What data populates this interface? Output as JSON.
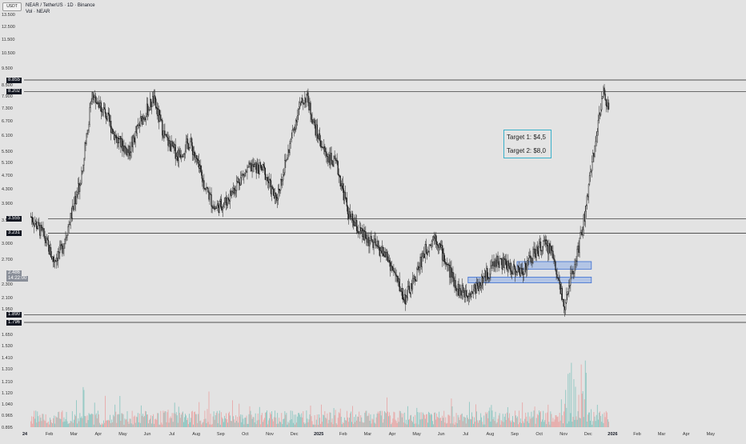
{
  "header": {
    "symbol_badge": "USDT",
    "title": "NEAR / TetherUS · 1D · Binance",
    "volume_label": "Vol · NEAR"
  },
  "annotation": {
    "target1": "Target 1: $4,5",
    "target2": "Target 2: $8,0"
  },
  "chart_data": {
    "type": "candlestick",
    "price_axis": {
      "scale": "log",
      "ticks": [
        "13.500",
        "12.500",
        "11.500",
        "10.500",
        "9.500",
        "8.500",
        "7.900",
        "7.300",
        "6.700",
        "6.100",
        "5.500",
        "5.100",
        "4.700",
        "4.300",
        "3.900",
        "3.500",
        "3.000",
        "2.700",
        "2.300",
        "2.100",
        "1.950",
        "1.650",
        "1.530",
        "1.410",
        "1.310",
        "1.210",
        "1.120",
        "1.040",
        "0.965",
        "0.895"
      ],
      "badges": {
        "level_top": "8.855",
        "level_high": "8.202",
        "level_mid_upper": "3.555",
        "level_mid": "3.231",
        "current": "2.486",
        "countdown": "14:22:00",
        "level_low_upper": "1.890",
        "level_low": "1.796"
      }
    },
    "time_axis": {
      "labels": [
        "24",
        "Feb",
        "Mar",
        "Apr",
        "May",
        "Jun",
        "Jul",
        "Aug",
        "Sep",
        "Oct",
        "Nov",
        "Dec",
        "2025",
        "Feb",
        "Mar",
        "Apr",
        "May",
        "Jun",
        "Jul",
        "Aug",
        "Sep",
        "Oct",
        "Nov",
        "Dec",
        "2026",
        "Feb",
        "Mar",
        "Apr",
        "May"
      ],
      "emphasized": [
        "24",
        "2025",
        "2026"
      ]
    },
    "horizontal_levels": [
      8.855,
      8.202,
      3.555,
      3.231,
      1.89,
      1.796
    ],
    "zones": [
      {
        "from_label": "Sep",
        "to_label": "Dec",
        "low": 2.55,
        "high": 2.68
      },
      {
        "from_label": "Jul",
        "to_label": "Dec",
        "low": 2.33,
        "high": 2.42
      }
    ],
    "price_path": [
      [
        "Jan 2024",
        3.6
      ],
      [
        "Jan 2024",
        3.2
      ],
      [
        "Feb 2024",
        2.7
      ],
      [
        "Feb 2024",
        2.9
      ],
      [
        "Feb 2024",
        3.5
      ],
      [
        "Mar 2024",
        4.5
      ],
      [
        "Mar 2024",
        8.0
      ],
      [
        "Apr 2024",
        7.2
      ],
      [
        "Apr 2024",
        6.0
      ],
      [
        "May 2024",
        5.5
      ],
      [
        "May 2024",
        6.8
      ],
      [
        "Jun 2024",
        7.8
      ],
      [
        "Jun 2024",
        6.0
      ],
      [
        "Jul 2024",
        5.4
      ],
      [
        "Jul 2024",
        5.9
      ],
      [
        "Aug 2024",
        4.6
      ],
      [
        "Aug 2024",
        3.8
      ],
      [
        "Sep 2024",
        4.0
      ],
      [
        "Sep 2024",
        4.6
      ],
      [
        "Oct 2024",
        5.0
      ],
      [
        "Oct 2024",
        4.9
      ],
      [
        "Nov 2024",
        4.0
      ],
      [
        "Nov 2024",
        5.5
      ],
      [
        "Dec 2024",
        7.3
      ],
      [
        "Dec 2024",
        8.0
      ],
      [
        "Dec 2024",
        6.5
      ],
      [
        "Jan 2025",
        5.5
      ],
      [
        "Jan 2025",
        5.0
      ],
      [
        "Feb 2025",
        3.6
      ],
      [
        "Feb 2025",
        3.2
      ],
      [
        "Mar 2025",
        3.0
      ],
      [
        "Mar 2025",
        2.8
      ],
      [
        "Apr 2025",
        2.4
      ],
      [
        "Apr 2025",
        2.1
      ],
      [
        "Apr 2025",
        2.3
      ],
      [
        "May 2025",
        2.8
      ],
      [
        "May 2025",
        3.2
      ],
      [
        "Jun 2025",
        2.6
      ],
      [
        "Jun 2025",
        2.2
      ],
      [
        "Jul 2025",
        2.2
      ],
      [
        "Jul 2025",
        2.4
      ],
      [
        "Aug 2025",
        2.7
      ],
      [
        "Aug 2025",
        2.6
      ],
      [
        "Sep 2025",
        2.5
      ],
      [
        "Sep 2025",
        2.8
      ],
      [
        "Oct 2025",
        3.0
      ],
      [
        "Oct 2025",
        2.9
      ],
      [
        "Oct 2025",
        2.3
      ],
      [
        "Nov 2025",
        2.0
      ],
      [
        "Nov 2025",
        2.4
      ],
      [
        "Nov 2025",
        2.6
      ],
      [
        "Nov 2025",
        2.9
      ],
      [
        "Nov 2025",
        3.3
      ],
      [
        "Nov 2025",
        3.8
      ],
      [
        "Dec 2025",
        5.0
      ],
      [
        "Dec 2025",
        6.5
      ],
      [
        "Dec 2025",
        8.2
      ],
      [
        "Dec 2025",
        7.1
      ]
    ],
    "volume_spikes_months": [
      "Mar 2024",
      "Nov 2025"
    ],
    "ylim": [
      0.895,
      13.5
    ],
    "grid": false
  }
}
